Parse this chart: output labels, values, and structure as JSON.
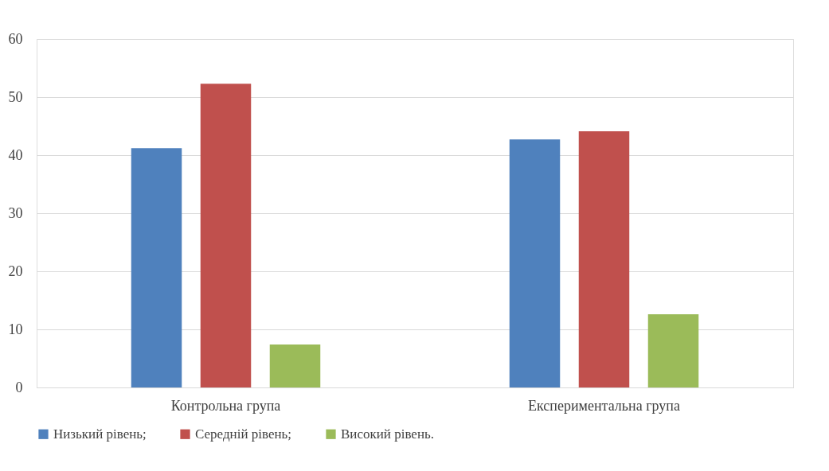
{
  "chart_data": {
    "type": "bar",
    "categories": [
      "Контрольна група",
      "Експериментальна група"
    ],
    "series": [
      {
        "name": "Низький рівень;",
        "color": "#4f81bd",
        "values": [
          41.2,
          42.7
        ]
      },
      {
        "name": "Середній рівень;",
        "color": "#c0504d",
        "values": [
          52.3,
          44.1
        ]
      },
      {
        "name": "Високий рівень.",
        "color": "#9bbb59",
        "values": [
          7.4,
          12.6
        ]
      }
    ],
    "ylim": [
      0,
      60
    ],
    "yticks": [
      0,
      10,
      20,
      30,
      40,
      50,
      60
    ],
    "grid": "y",
    "legend": "bottom"
  }
}
